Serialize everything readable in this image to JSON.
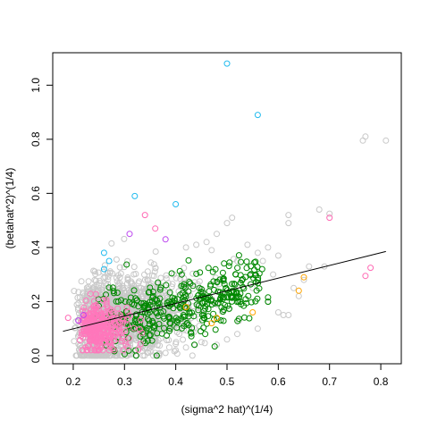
{
  "chart_data": {
    "type": "scatter",
    "title": "",
    "xlabel": "(sigma^2 hat)^(1/4)",
    "ylabel": "(betahat^2)^(1/4)",
    "xlim": [
      0.16,
      0.84
    ],
    "ylim": [
      -0.03,
      1.12
    ],
    "xticks": [
      "0.2",
      "0.3",
      "0.4",
      "0.5",
      "0.6",
      "0.7",
      "0.8"
    ],
    "xtick_values": [
      0.2,
      0.3,
      0.4,
      0.5,
      0.6,
      0.7,
      0.8
    ],
    "yticks": [
      "0.0",
      "0.2",
      "0.4",
      "0.6",
      "0.8",
      "1.0"
    ],
    "ytick_values": [
      0.0,
      0.2,
      0.4,
      0.6,
      0.8,
      1.0
    ],
    "marker": "open-circle",
    "grid": false,
    "legend": "none",
    "fit_line": {
      "x": [
        0.18,
        0.81
      ],
      "y": [
        0.09,
        0.385
      ],
      "color": "#000000"
    },
    "series": [
      {
        "color": "#c8c8c8",
        "points": [
          [
            0.77,
            0.81
          ],
          [
            0.81,
            0.795
          ],
          [
            0.765,
            0.795
          ],
          [
            0.68,
            0.54
          ],
          [
            0.7,
            0.525
          ],
          [
            0.62,
            0.52
          ],
          [
            0.62,
            0.49
          ],
          [
            0.6,
            0.37
          ],
          [
            0.55,
            0.3
          ],
          [
            0.51,
            0.51
          ],
          [
            0.5,
            0.49
          ],
          [
            0.48,
            0.45
          ],
          [
            0.46,
            0.42
          ],
          [
            0.47,
            0.39
          ],
          [
            0.44,
            0.41
          ],
          [
            0.42,
            0.4
          ],
          [
            0.56,
            0.38
          ],
          [
            0.57,
            0.35
          ],
          [
            0.59,
            0.3
          ],
          [
            0.63,
            0.25
          ],
          [
            0.65,
            0.28
          ],
          [
            0.6,
            0.16
          ],
          [
            0.61,
            0.15
          ],
          [
            0.58,
            0.2
          ],
          [
            0.55,
            0.25
          ],
          [
            0.53,
            0.28
          ],
          [
            0.52,
            0.35
          ],
          [
            0.54,
            0.41
          ],
          [
            0.58,
            0.4
          ],
          [
            0.66,
            0.33
          ],
          [
            0.69,
            0.33
          ],
          [
            0.64,
            0.22
          ],
          [
            0.62,
            0.15
          ],
          [
            0.56,
            0.1
          ],
          [
            0.52,
            0.08
          ],
          [
            0.5,
            0.06
          ],
          [
            0.48,
            0.04
          ],
          [
            0.45,
            0.05
          ],
          [
            0.42,
            0.03
          ],
          [
            0.4,
            0.02
          ],
          [
            0.38,
            0.01
          ],
          [
            0.36,
            0.01
          ]
        ]
      },
      {
        "color": "#008800",
        "points": []
      },
      {
        "color": "#ff77bb",
        "points": []
      },
      {
        "color": "#ffa500",
        "points": [
          [
            0.65,
            0.29
          ],
          [
            0.64,
            0.24
          ],
          [
            0.48,
            0.14
          ],
          [
            0.47,
            0.12
          ],
          [
            0.55,
            0.16
          ],
          [
            0.42,
            0.18
          ]
        ]
      },
      {
        "color": "#22bbee",
        "points": [
          [
            0.5,
            1.08
          ],
          [
            0.56,
            0.89
          ],
          [
            0.32,
            0.59
          ],
          [
            0.4,
            0.56
          ],
          [
            0.26,
            0.38
          ],
          [
            0.27,
            0.35
          ],
          [
            0.26,
            0.32
          ]
        ]
      },
      {
        "color": "#bb44ee",
        "points": [
          [
            0.31,
            0.45
          ],
          [
            0.38,
            0.43
          ],
          [
            0.21,
            0.13
          ],
          [
            0.22,
            0.15
          ]
        ]
      },
      {
        "color": "#ff69b4",
        "points": [
          [
            0.34,
            0.52
          ],
          [
            0.7,
            0.51
          ],
          [
            0.77,
            0.295
          ],
          [
            0.78,
            0.325
          ],
          [
            0.36,
            0.47
          ],
          [
            0.19,
            0.14
          ]
        ]
      }
    ]
  }
}
